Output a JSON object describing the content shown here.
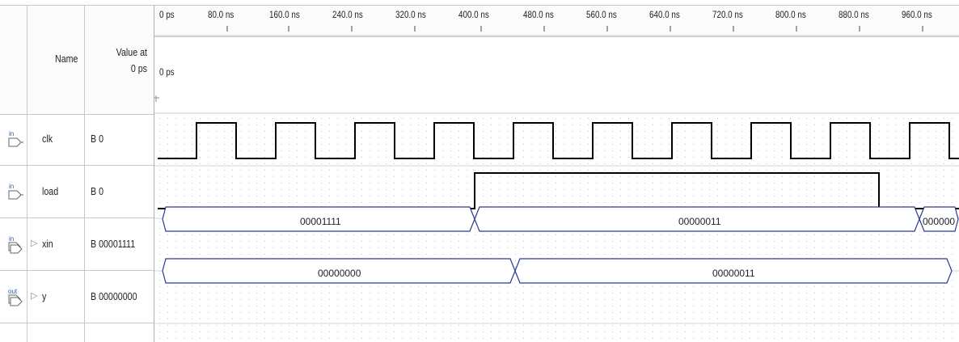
{
  "columns": {
    "name": "Name",
    "value_line1": "Value at",
    "value_line2": "0 ps"
  },
  "cursor_label": "0 ps",
  "ruler": {
    "ticks": [
      "0 ps",
      "80.0 ns",
      "160.0 ns",
      "240.0 ns",
      "320.0 ns",
      "400.0 ns",
      "480.0 ns",
      "560.0 ns",
      "640.0 ns",
      "720.0 ns",
      "800.0 ns",
      "880.0 ns",
      "960.0 ns"
    ]
  },
  "signals": [
    {
      "icon": "input-pin-icon",
      "icon_text": "in",
      "name": "clk",
      "value": "B 0",
      "expandable": false
    },
    {
      "icon": "input-pin-icon",
      "icon_text": "in",
      "name": "load",
      "value": "B 0",
      "expandable": false
    },
    {
      "icon": "input-bus-icon",
      "icon_text": "in",
      "name": "xin",
      "value": "B 00001111",
      "expandable": true
    },
    {
      "icon": "output-bus-icon",
      "icon_text": "out",
      "name": "y",
      "value": "B 00000000",
      "expandable": true
    }
  ],
  "buses": {
    "xin": [
      "00001111",
      "00000011",
      "000000"
    ],
    "y": [
      "00000000",
      "00000011"
    ]
  },
  "colors": {
    "wave": "#000000",
    "bus_outline": "#2a3a8c",
    "grid_dot": "#c0c0c0"
  }
}
